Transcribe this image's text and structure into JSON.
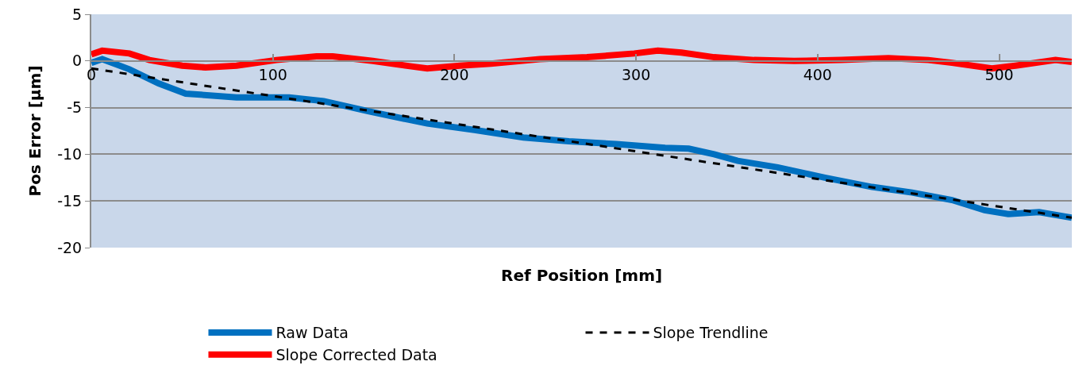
{
  "chart_data": {
    "type": "line",
    "xlabel": "Ref Position [mm]",
    "ylabel": "Pos Error [µm]",
    "xlim": [
      0,
      540
    ],
    "xticks": [
      0,
      100,
      200,
      300,
      400,
      500
    ],
    "ylim": [
      -20,
      5
    ],
    "yticks": [
      5,
      0,
      -5,
      -10,
      -15,
      -20
    ],
    "grid": "y",
    "legend": "bottom",
    "marker": "none",
    "series": [
      {
        "name": "Raw Data",
        "color": "#0070c0",
        "line_style": "solid",
        "x": [
          0,
          6,
          21,
          37,
          52,
          80,
          109,
          128,
          153,
          175,
          185,
          211,
          238,
          263,
          289,
          316,
          329,
          343,
          356,
          378,
          404,
          430,
          452,
          474,
          492,
          505,
          522,
          540
        ],
        "values": [
          -0.2,
          0.2,
          -0.9,
          -2.4,
          -3.5,
          -3.9,
          -3.9,
          -4.3,
          -5.4,
          -6.3,
          -6.7,
          -7.4,
          -8.2,
          -8.6,
          -8.9,
          -9.3,
          -9.4,
          -10.0,
          -10.7,
          -11.4,
          -12.5,
          -13.5,
          -14.1,
          -14.9,
          -16.0,
          -16.4,
          -16.2,
          -16.8
        ]
      },
      {
        "name": "Slope Trendline",
        "color": "#000000",
        "line_style": "dashed",
        "x": [
          0,
          540
        ],
        "values": [
          -0.8,
          -16.8
        ]
      },
      {
        "name": "Slope Corrected Data",
        "color": "#ff0000",
        "line_style": "solid",
        "x": [
          0,
          6,
          21,
          32,
          50,
          63,
          80,
          102,
          124,
          133,
          155,
          177,
          185,
          203,
          220,
          247,
          273,
          299,
          312,
          325,
          343,
          365,
          387,
          413,
          439,
          461,
          474,
          496,
          509,
          531,
          540
        ],
        "values": [
          0.7,
          1.1,
          0.8,
          0.1,
          -0.5,
          -0.7,
          -0.5,
          0.1,
          0.5,
          0.5,
          0,
          -0.6,
          -0.8,
          -0.5,
          -0.3,
          0.2,
          0.4,
          0.8,
          1.1,
          0.9,
          0.4,
          0.1,
          0,
          0.1,
          0.3,
          0.1,
          -0.2,
          -0.8,
          -0.5,
          0.1,
          -0.1
        ]
      }
    ]
  }
}
